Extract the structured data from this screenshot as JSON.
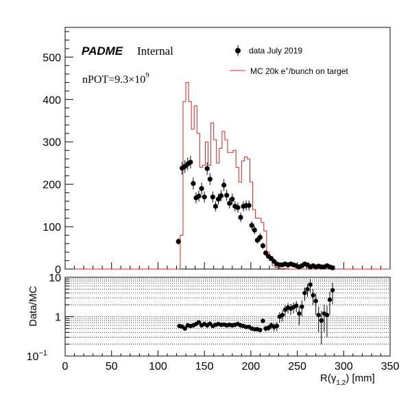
{
  "chart_data": [
    {
      "type": "histogram",
      "panel": "main",
      "xlim": [
        0,
        350
      ],
      "ylim": [
        0,
        570
      ],
      "yticks": [
        0,
        100,
        200,
        300,
        400,
        500
      ],
      "ytick_labels": [
        "0",
        "100",
        "200",
        "300",
        "400",
        "500"
      ],
      "grid": false,
      "legend_position": "top-right",
      "annotations": {
        "brand": "PADME",
        "brand_suffix": "Internal",
        "npot_prefix": "nPOT=9.3×10",
        "npot_exponent": "9"
      },
      "legend": [
        {
          "label": "data July 2019",
          "marker": "point-with-error"
        },
        {
          "label_main": "MC 20k e",
          "label_sup": "+",
          "label_rest": "/bunch on target",
          "marker": "line"
        }
      ],
      "colors": {
        "data": "#000000",
        "mc": "#d42020"
      },
      "series": [
        {
          "name": "MC 20k e+/bunch on target",
          "style": "step",
          "bin_width": 3,
          "bin_starts": [
            121,
            124,
            127,
            130,
            133,
            136,
            139,
            142,
            145,
            148,
            151,
            154,
            157,
            160,
            163,
            166,
            169,
            172,
            175,
            178,
            181,
            184,
            187,
            190,
            193,
            196,
            199,
            202,
            205,
            208,
            211,
            214,
            217,
            220,
            223,
            226,
            229,
            232,
            235,
            238
          ],
          "values": [
            0,
            80,
            395,
            440,
            395,
            330,
            385,
            320,
            240,
            245,
            300,
            245,
            345,
            305,
            250,
            285,
            325,
            305,
            275,
            275,
            280,
            240,
            205,
            255,
            265,
            260,
            205,
            140,
            120,
            120,
            110,
            90,
            40,
            20,
            8,
            4,
            2,
            1,
            1,
            0
          ]
        },
        {
          "name": "data July 2019",
          "style": "points",
          "x": [
            122,
            126,
            129,
            132,
            135,
            138,
            141,
            144,
            147,
            150,
            153,
            156,
            159,
            162,
            165,
            168,
            171,
            174,
            177,
            180,
            183,
            186,
            189,
            192,
            195,
            198,
            201,
            204,
            207,
            210,
            213,
            216,
            219,
            222,
            225,
            228,
            231,
            234,
            237,
            240,
            243,
            246,
            249,
            252,
            255,
            258,
            261,
            264,
            267,
            270,
            273,
            276,
            279,
            282,
            285,
            288
          ],
          "y": [
            65,
            238,
            242,
            248,
            252,
            202,
            168,
            172,
            190,
            170,
            237,
            212,
            170,
            148,
            165,
            173,
            198,
            174,
            155,
            165,
            148,
            145,
            122,
            148,
            150,
            150,
            103,
            92,
            68,
            75,
            55,
            38,
            30,
            25,
            18,
            12,
            10,
            10,
            12,
            10,
            12,
            10,
            8,
            5,
            8,
            12,
            10,
            5,
            8,
            5,
            7,
            5,
            5,
            8,
            5,
            3
          ],
          "yerr": [
            8,
            15,
            15,
            15,
            15,
            14,
            13,
            13,
            14,
            13,
            15,
            14,
            13,
            12,
            13,
            13,
            14,
            13,
            12,
            13,
            12,
            12,
            11,
            12,
            12,
            12,
            10,
            10,
            8,
            9,
            7,
            6,
            5,
            5,
            4,
            3.5,
            3.2,
            3.2,
            3.5,
            3.2,
            3.5,
            3.2,
            2.8,
            2.2,
            2.8,
            3.5,
            3.2,
            2.2,
            2.8,
            2.2,
            2.6,
            2.2,
            2.2,
            2.8,
            2.2,
            1.7
          ]
        }
      ]
    },
    {
      "type": "scatter",
      "panel": "ratio",
      "ylabel": "Data/MC",
      "xlabel_main": "R(γ",
      "xlabel_sub": "1,2",
      "xlabel_rest": ") [mm]",
      "xlim": [
        0,
        350
      ],
      "ylim": [
        0.1,
        10
      ],
      "yscale": "log",
      "grid": "dotted horizontal",
      "xticks": [
        0,
        50,
        100,
        150,
        200,
        250,
        300,
        350
      ],
      "xtick_labels": [
        "0",
        "50",
        "100",
        "150",
        "200",
        "250",
        "300",
        "350"
      ],
      "ytick_labels": [
        {
          "value": 10,
          "base": "10",
          "sup": ""
        },
        {
          "value": 1,
          "base": "1",
          "sup": ""
        },
        {
          "value": 0.1,
          "base": "10",
          "sup": "−1"
        }
      ],
      "series": [
        {
          "name": "Data/MC",
          "x": [
            123,
            126,
            129,
            132,
            135,
            138,
            141,
            144,
            147,
            150,
            153,
            156,
            159,
            162,
            165,
            168,
            171,
            174,
            177,
            180,
            183,
            186,
            189,
            192,
            195,
            198,
            201,
            204,
            207,
            210,
            213,
            216,
            219,
            222,
            225,
            228,
            231,
            234,
            237,
            240,
            243,
            246,
            249,
            252,
            255,
            258,
            261,
            264,
            267,
            270,
            273,
            276,
            279,
            282,
            285,
            288
          ],
          "y": [
            0.58,
            0.56,
            0.5,
            0.6,
            0.58,
            0.6,
            0.65,
            0.72,
            0.6,
            0.65,
            0.6,
            0.66,
            0.58,
            0.62,
            0.65,
            0.62,
            0.63,
            0.6,
            0.62,
            0.6,
            0.62,
            0.65,
            0.6,
            0.58,
            0.55,
            0.55,
            0.5,
            0.48,
            0.48,
            0.46,
            0.78,
            0.5,
            0.52,
            0.6,
            0.55,
            0.58,
            1.0,
            1.1,
            1.5,
            1.7,
            1.6,
            1.75,
            1.9,
            1.2,
            1.8,
            4.0,
            5.0,
            6.5,
            3.5,
            2.5,
            1.1,
            0.8,
            1.2,
            1.1,
            2.7,
            4.7
          ],
          "yerr": [
            0.06,
            0.05,
            0.05,
            0.05,
            0.05,
            0.05,
            0.06,
            0.06,
            0.05,
            0.05,
            0.05,
            0.06,
            0.05,
            0.05,
            0.05,
            0.05,
            0.05,
            0.05,
            0.05,
            0.05,
            0.05,
            0.06,
            0.05,
            0.05,
            0.05,
            0.05,
            0.05,
            0.05,
            0.06,
            0.06,
            0.1,
            0.08,
            0.09,
            0.12,
            0.13,
            0.15,
            0.3,
            0.35,
            0.45,
            0.5,
            0.5,
            0.55,
            0.6,
            0.6,
            0.8,
            1.5,
            1.8,
            2.5,
            1.5,
            1.4,
            0.7,
            0.6,
            0.8,
            0.8,
            1.6,
            2.6
          ]
        }
      ]
    }
  ]
}
